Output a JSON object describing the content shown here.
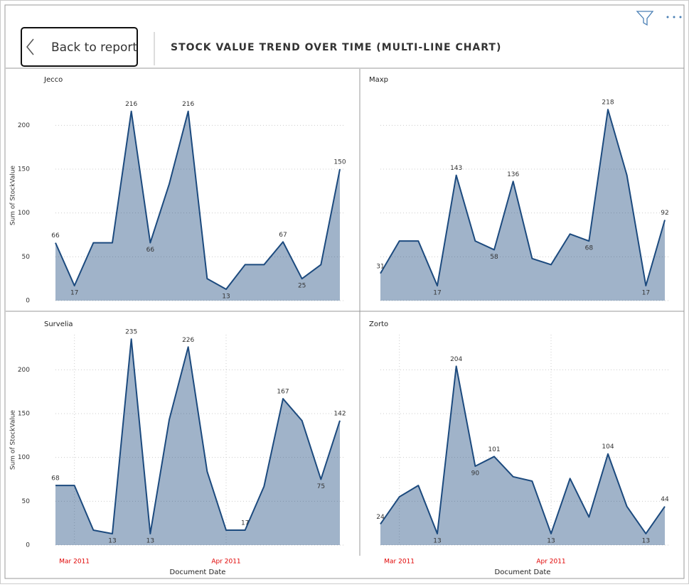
{
  "header": {
    "back": "Back to report",
    "title": "STOCK VALUE TREND OVER TIME (MULTI-LINE CHART)"
  },
  "chart_data": [
    {
      "type": "area",
      "title": "Jecco",
      "color": "#1c4a7e",
      "categories": [
        null,
        null,
        null,
        null,
        null,
        null,
        null,
        null,
        null,
        null,
        null,
        null,
        null,
        null,
        null,
        null
      ],
      "values": [
        66,
        17,
        66,
        66,
        216,
        66,
        133,
        216,
        25,
        13,
        41,
        41,
        67,
        25,
        41,
        150
      ],
      "value_labels": [
        "66",
        "17",
        null,
        null,
        "216",
        "66",
        null,
        "216",
        null,
        "13",
        null,
        null,
        "67",
        "25",
        null,
        "150"
      ],
      "ylim": [
        0,
        240
      ],
      "yticks": [
        0,
        50,
        100,
        150,
        200
      ],
      "ytick_labels": true,
      "grid": true,
      "ylabel": "Sum of StockValue"
    },
    {
      "type": "area",
      "title": "Maxp",
      "color": "#1c4a7e",
      "categories": [
        null,
        null,
        null,
        null,
        null,
        null,
        null,
        null,
        null,
        null,
        null,
        null,
        null,
        null,
        null,
        null
      ],
      "values": [
        31,
        68,
        68,
        17,
        143,
        68,
        58,
        136,
        48,
        41,
        76,
        68,
        218,
        143,
        17,
        92
      ],
      "value_labels": [
        "31",
        null,
        null,
        "17",
        "143",
        null,
        "58",
        "136",
        null,
        null,
        null,
        "68",
        "218",
        null,
        "17",
        "92"
      ],
      "ylim": [
        0,
        240
      ],
      "yticks": [
        0,
        50,
        100,
        150,
        200
      ],
      "ytick_labels": false,
      "grid": true
    },
    {
      "type": "area",
      "title": "Survelia",
      "color": "#1c4a7e",
      "categories": [
        null,
        "Mar 2011",
        null,
        null,
        null,
        null,
        null,
        null,
        null,
        "Apr 2011",
        null,
        null,
        null,
        null,
        null,
        null
      ],
      "values": [
        68,
        68,
        17,
        13,
        235,
        13,
        143,
        226,
        84,
        17,
        17,
        67,
        167,
        142,
        75,
        142
      ],
      "value_labels": [
        "68",
        null,
        null,
        "13",
        "235",
        "13",
        null,
        "226",
        null,
        null,
        "17",
        null,
        "167",
        null,
        "75",
        "142"
      ],
      "ylim": [
        0,
        240
      ],
      "yticks": [
        0,
        50,
        100,
        150,
        200
      ],
      "ytick_labels": true,
      "grid": true,
      "ylabel": "Sum of StockValue",
      "xlabel": "Document Date"
    },
    {
      "type": "area",
      "title": "Zorto",
      "color": "#1c4a7e",
      "categories": [
        null,
        "Mar 2011",
        null,
        null,
        null,
        null,
        null,
        null,
        null,
        "Apr 2011",
        null,
        null,
        null,
        null,
        null,
        null
      ],
      "values": [
        24,
        55,
        68,
        13,
        204,
        90,
        101,
        78,
        73,
        13,
        76,
        32,
        104,
        44,
        13,
        44
      ],
      "value_labels": [
        "24",
        null,
        null,
        "13",
        "204",
        "90",
        "101",
        null,
        null,
        "13",
        null,
        null,
        "104",
        null,
        "13",
        "44"
      ],
      "ylim": [
        0,
        240
      ],
      "yticks": [
        0,
        50,
        100,
        150,
        200
      ],
      "ytick_labels": false,
      "grid": true,
      "xlabel": "Document Date"
    }
  ]
}
